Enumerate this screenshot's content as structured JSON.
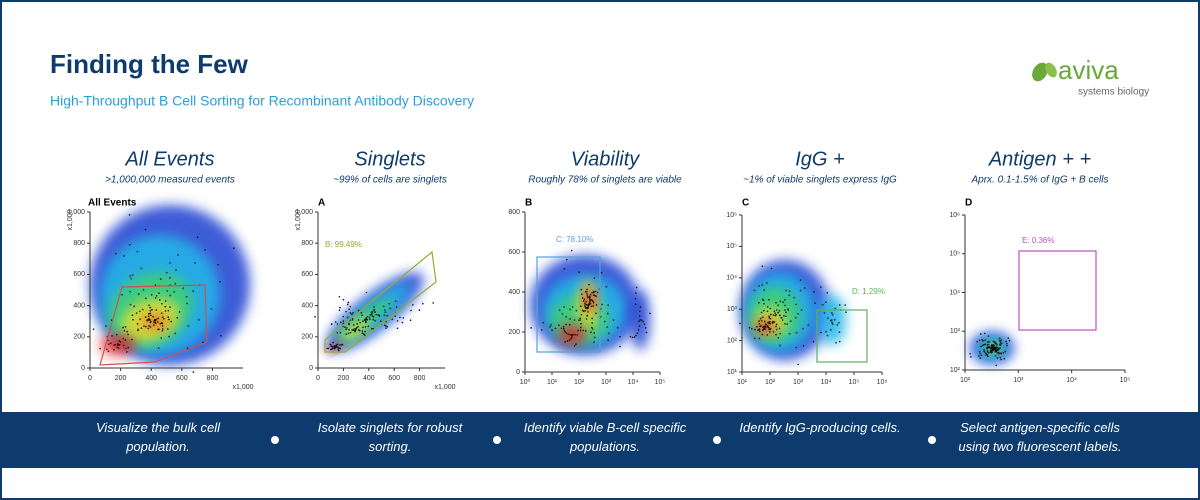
{
  "header": {
    "title": "Finding the Few",
    "subtitle": "High-Throughput B Cell Sorting for Recombinant Antibody Discovery"
  },
  "logo": {
    "name": "aviva",
    "tagline": "systems biology"
  },
  "panels": [
    {
      "heading": "All Events",
      "subheading": ">1,000,000 measured events",
      "plot_label": "All Events",
      "yticks": [
        "0",
        "200",
        "400",
        "600",
        "800",
        "1,000"
      ],
      "xticks": [
        "0",
        "200",
        "400",
        "600",
        "800"
      ],
      "axis_unit": "x1,000",
      "gate": null,
      "description": "Visualize the bulk cell population."
    },
    {
      "heading": "Singlets",
      "subheading": "~99% of cells are singlets",
      "plot_label": "A",
      "yticks": [
        "0",
        "200",
        "400",
        "600",
        "800",
        "1,000"
      ],
      "xticks": [
        "0",
        "200",
        "400",
        "600",
        "800"
      ],
      "axis_unit": "x1,000",
      "gate": "B: 99.49%",
      "description": "Isolate singlets for robust sorting."
    },
    {
      "heading": "Viability",
      "subheading": "Roughly 78% of singlets are viable",
      "plot_label": "B",
      "yticks": [
        "0",
        "200",
        "400",
        "600",
        "800"
      ],
      "xticks": [
        "10⁰",
        "10¹",
        "10²",
        "10³",
        "10⁴",
        "10⁵"
      ],
      "axis_unit": null,
      "gate": "C: 78.10%",
      "description": "Identify viable B-cell specific populations."
    },
    {
      "heading": "IgG +",
      "subheading": "~1% of  viable singlets express IgG",
      "plot_label": "C",
      "yticks": [
        "10¹",
        "10²",
        "10³",
        "10⁴",
        "10⁵",
        "10⁶"
      ],
      "xticks": [
        "10¹",
        "10²",
        "10³",
        "10⁴",
        "10⁵",
        "10⁶"
      ],
      "axis_unit": null,
      "gate": "D: 1.29%",
      "description": "Identify IgG-producing cells."
    },
    {
      "heading": "Antigen + +",
      "subheading": "Aprx. 0.1-1.5% of IgG + B cells",
      "plot_label": "D",
      "yticks": [
        "10²",
        "10³",
        "10⁴",
        "10⁵",
        "10⁶"
      ],
      "xticks": [
        "10²",
        "10³",
        "10⁴",
        "10⁵"
      ],
      "axis_unit": null,
      "gate": "E: 0.36%",
      "description": "Select antigen-specific cells using two fluorescent labels."
    }
  ]
}
